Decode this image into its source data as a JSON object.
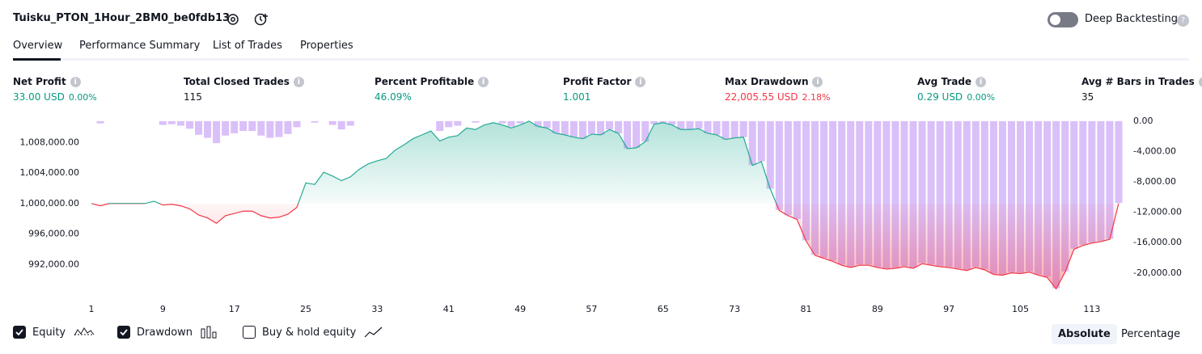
{
  "header": {
    "title": "Tuisku_PTON_1Hour_2BM0_be0fdb13",
    "toggle_label": "Deep Backtesting"
  },
  "tabs": [
    "Overview",
    "Performance Summary",
    "List of Trades",
    "Properties"
  ],
  "metrics": [
    {
      "label": "Net Profit",
      "value": "33.00 USD",
      "percent": "0.00%",
      "color": "#089981"
    },
    {
      "label": "Total Closed Trades",
      "value": "115",
      "color": "#131722"
    },
    {
      "label": "Percent Profitable",
      "value": "46.09%",
      "color": "#089981"
    },
    {
      "label": "Profit Factor",
      "value": "1.001",
      "color": "#089981"
    },
    {
      "label": "Max Drawdown",
      "value": "22,005.55 USD",
      "percent": "2.18%",
      "color": "#f23645"
    },
    {
      "label": "Avg Trade",
      "value": "0.29 USD",
      "percent": "0.00%",
      "color": "#089981"
    },
    {
      "label": "Avg # Bars in Trades",
      "value": "35",
      "color": "#131722"
    }
  ],
  "chart_data": {
    "type": "equity",
    "x": [
      1,
      2,
      3,
      4,
      5,
      6,
      7,
      8,
      9,
      10,
      11,
      12,
      13,
      14,
      15,
      16,
      17,
      18,
      19,
      20,
      21,
      22,
      23,
      24,
      25,
      26,
      27,
      28,
      29,
      30,
      31,
      32,
      33,
      34,
      35,
      36,
      37,
      38,
      39,
      40,
      41,
      42,
      43,
      44,
      45,
      46,
      47,
      48,
      49,
      50,
      51,
      52,
      53,
      54,
      55,
      56,
      57,
      58,
      59,
      60,
      61,
      62,
      63,
      64,
      65,
      66,
      67,
      68,
      69,
      70,
      71,
      72,
      73,
      74,
      75,
      76,
      77,
      78,
      79,
      80,
      81,
      82,
      83,
      84,
      85,
      86,
      87,
      88,
      89,
      90,
      91,
      92,
      93,
      94,
      95,
      96,
      97,
      98,
      99,
      100,
      101,
      102,
      103,
      104,
      105,
      106,
      107,
      108,
      109,
      110,
      111,
      112,
      113,
      114,
      115,
      116
    ],
    "xlim": [
      0.5,
      116.5
    ],
    "xticks": [
      1,
      9,
      17,
      25,
      33,
      41,
      49,
      57,
      65,
      73,
      81,
      89,
      97,
      105,
      113
    ],
    "ylim": [
      988000,
      1011000
    ],
    "yticks": [
      {
        "value": 992000,
        "label": "992,000.00"
      },
      {
        "value": 996000,
        "label": "996,000.00"
      },
      {
        "value": 1000000,
        "label": "1,000,000.00"
      },
      {
        "value": 1004000,
        "label": "1,004,000.00"
      },
      {
        "value": 1008000,
        "label": "1,008,000.00"
      }
    ],
    "y2lim": [
      -22900,
      200
    ],
    "y2ticks": [
      {
        "value": 0,
        "label": "0.00"
      },
      {
        "value": -4000,
        "label": "-4,000.00"
      },
      {
        "value": -8000,
        "label": "-8,000.00"
      },
      {
        "value": -12000,
        "label": "-12,000.00"
      },
      {
        "value": -16000,
        "label": "-16,000.00"
      },
      {
        "value": -20000,
        "label": "-20,000.00"
      }
    ],
    "series": [
      {
        "name": "Equity",
        "color": "#22ab94",
        "negative_color": "#f23645",
        "values": [
          1000000,
          999700,
          1000000,
          1000000,
          1000000,
          1000000,
          1000000,
          1000300,
          999800,
          999900,
          999700,
          999300,
          998500,
          998100,
          997400,
          998400,
          998700,
          999000,
          999000,
          998400,
          998100,
          998200,
          998600,
          999500,
          1002700,
          1002500,
          1004100,
          1003600,
          1003000,
          1003500,
          1004500,
          1005200,
          1005600,
          1005900,
          1007000,
          1007700,
          1008500,
          1009000,
          1009500,
          1008200,
          1008700,
          1008900,
          1009900,
          1009700,
          1010300,
          1010600,
          1010300,
          1009900,
          1010300,
          1010800,
          1010100,
          1009900,
          1009200,
          1009000,
          1008700,
          1008500,
          1009100,
          1009000,
          1009700,
          1009200,
          1007200,
          1007300,
          1008100,
          1010400,
          1010600,
          1010300,
          1009700,
          1009700,
          1009800,
          1009200,
          1009000,
          1008400,
          1008600,
          1008700,
          1005000,
          1005500,
          1001900,
          999100,
          998400,
          997900,
          995100,
          993200,
          992800,
          992400,
          991900,
          991600,
          991900,
          991900,
          991600,
          991400,
          991500,
          991700,
          991500,
          992100,
          991900,
          991700,
          991600,
          991400,
          991200,
          991600,
          991300,
          990700,
          990600,
          990900,
          990800,
          991000,
          990600,
          990300,
          988800,
          991000,
          994000,
          994500,
          994800,
          995000,
          995300,
          1000033
        ]
      },
      {
        "name": "Drawdown",
        "color": "#d4b5f7",
        "axis": "y2",
        "values": [
          0,
          -300,
          0,
          0,
          0,
          0,
          0,
          0,
          -500,
          -400,
          -600,
          -1000,
          -1800,
          -2200,
          -2900,
          -1900,
          -1600,
          -1300,
          -1300,
          -1900,
          -2200,
          -2100,
          -1700,
          -800,
          0,
          -200,
          0,
          -500,
          -1100,
          -600,
          0,
          0,
          0,
          0,
          0,
          0,
          0,
          0,
          0,
          -1300,
          -800,
          -600,
          0,
          -200,
          0,
          0,
          -300,
          -700,
          -300,
          0,
          -700,
          -900,
          -1600,
          -1800,
          -2100,
          -2300,
          -1700,
          -1800,
          -1100,
          -1600,
          -3600,
          -3500,
          -2700,
          -400,
          -200,
          -500,
          -1100,
          -1100,
          -1000,
          -1600,
          -1800,
          -2400,
          -2200,
          -2100,
          -5800,
          -5300,
          -8900,
          -11700,
          -12400,
          -12900,
          -15700,
          -17600,
          -18000,
          -18400,
          -18900,
          -19200,
          -18900,
          -18900,
          -19200,
          -19400,
          -19300,
          -19100,
          -19300,
          -18700,
          -18900,
          -19100,
          -19200,
          -19400,
          -19600,
          -19200,
          -19500,
          -20100,
          -20200,
          -19900,
          -20000,
          -19800,
          -20200,
          -20500,
          -22000,
          -19800,
          -16800,
          -16300,
          -16000,
          -15800,
          -15500,
          -10767
        ]
      }
    ]
  },
  "options": [
    {
      "label": "Equity",
      "checked": true
    },
    {
      "label": "Drawdown",
      "checked": true
    },
    {
      "label": "Buy & hold equity",
      "checked": false
    }
  ],
  "modes": [
    {
      "label": "Absolute",
      "selected": true
    },
    {
      "label": "Percentage",
      "selected": false
    }
  ]
}
